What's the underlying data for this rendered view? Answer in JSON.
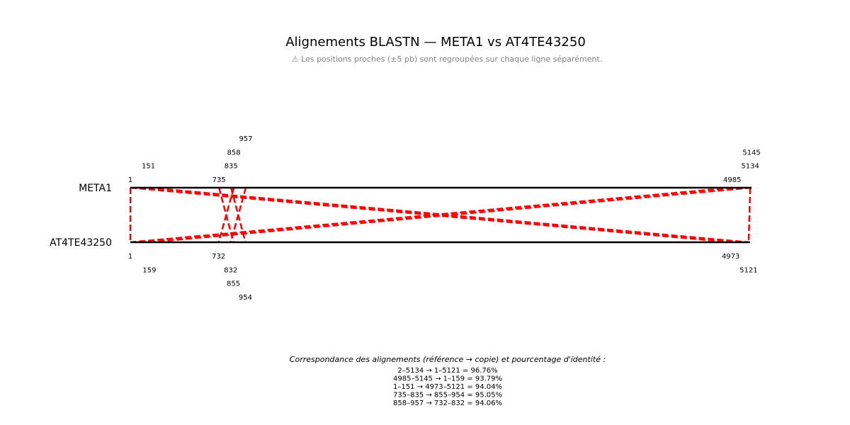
{
  "title": "Alignements BLASTN — META1 vs AT4TE43250",
  "subtitle": "⚠ Les positions proches (±5 pb) sont regroupées sur chaque ligne séparément.",
  "chart_data": {
    "type": "alignment",
    "ref": {
      "name": "META1",
      "length": 5145
    },
    "copy": {
      "name": "AT4TE43250",
      "length": 5121
    },
    "alignments": [
      {
        "ref_start": 2,
        "ref_end": 5134,
        "copy_start": 1,
        "copy_end": 5121,
        "identity": 96.76,
        "label": "2–5134 → 1–5121 = 96.76%"
      },
      {
        "ref_start": 4985,
        "ref_end": 5145,
        "copy_start": 1,
        "copy_end": 159,
        "identity": 93.79,
        "label": "4985–5145 → 1–159 = 93.79%"
      },
      {
        "ref_start": 1,
        "ref_end": 151,
        "copy_start": 4973,
        "copy_end": 5121,
        "identity": 94.04,
        "label": "1–151 → 4973–5121 = 94.04%"
      },
      {
        "ref_start": 735,
        "ref_end": 835,
        "copy_start": 855,
        "copy_end": 954,
        "identity": 95.05,
        "label": "735–835 → 855–954 = 95.05%"
      },
      {
        "ref_start": 858,
        "ref_end": 957,
        "copy_start": 732,
        "copy_end": 832,
        "identity": 94.06,
        "label": "858–957 → 732–832 = 94.06%"
      }
    ],
    "ref_position_labels": [
      1,
      151,
      735,
      835,
      858,
      957,
      4985,
      5134,
      5145
    ],
    "copy_position_labels": [
      1,
      159,
      732,
      832,
      855,
      954,
      4973,
      5121
    ],
    "caption": "Correspondance des alignements (référence → copie) et pourcentage d'identité :",
    "colors": {
      "alignment": "#ff0000",
      "sequence": "#000000"
    }
  }
}
